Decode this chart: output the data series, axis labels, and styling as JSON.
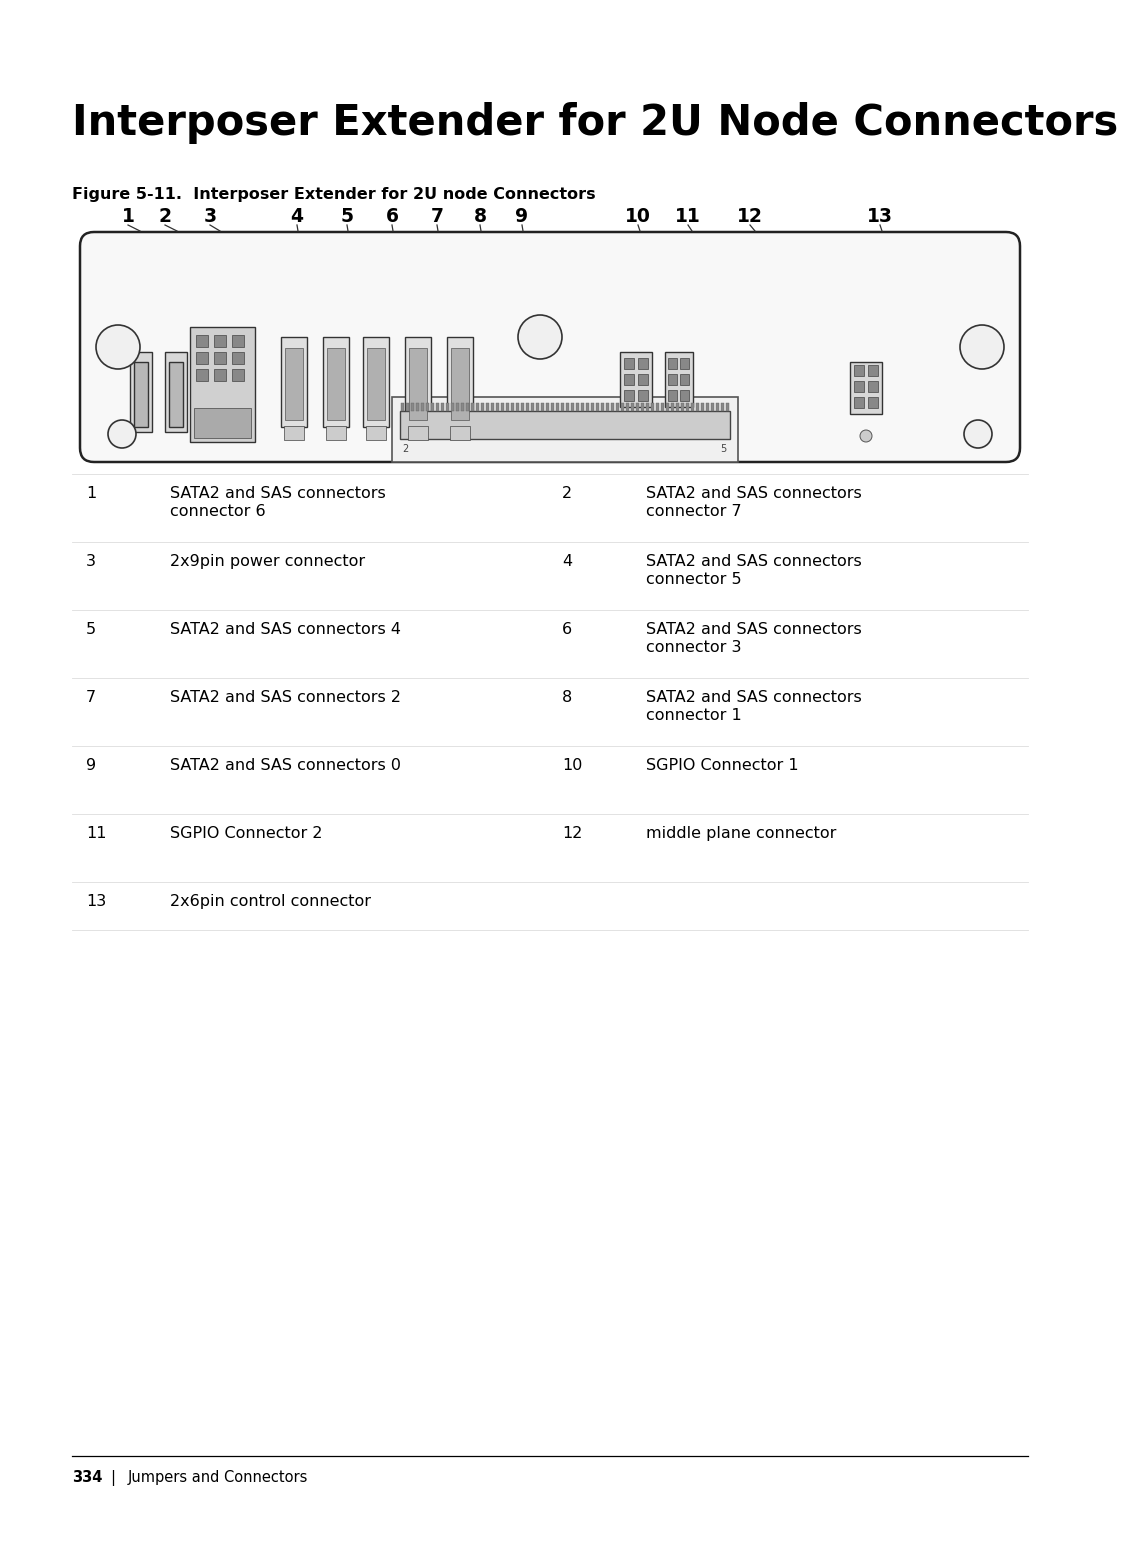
{
  "title": "Interposer Extender for 2U Node Connectors",
  "figure_label": "Figure 5-11.  Interposer Extender for 2U node Connectors",
  "page_footer_num": "334",
  "page_footer_text": "Jumpers and Connectors",
  "table_entries": [
    {
      "num": "1",
      "desc1": "SATA2 and SAS connectors",
      "desc2": "connector 6"
    },
    {
      "num": "2",
      "desc1": "SATA2 and SAS connectors",
      "desc2": "connector 7"
    },
    {
      "num": "3",
      "desc1": "2x9pin power connector",
      "desc2": ""
    },
    {
      "num": "4",
      "desc1": "SATA2 and SAS connectors",
      "desc2": "connector 5"
    },
    {
      "num": "5",
      "desc1": "SATA2 and SAS connectors 4",
      "desc2": ""
    },
    {
      "num": "6",
      "desc1": "SATA2 and SAS connectors",
      "desc2": "connector 3"
    },
    {
      "num": "7",
      "desc1": "SATA2 and SAS connectors 2",
      "desc2": ""
    },
    {
      "num": "8",
      "desc1": "SATA2 and SAS connectors",
      "desc2": "connector 1"
    },
    {
      "num": "9",
      "desc1": "SATA2 and SAS connectors 0",
      "desc2": ""
    },
    {
      "num": "10",
      "desc1": "SGPIO Connector 1",
      "desc2": ""
    },
    {
      "num": "11",
      "desc1": "SGPIO Connector 2",
      "desc2": ""
    },
    {
      "num": "12",
      "desc1": "middle plane connector",
      "desc2": ""
    },
    {
      "num": "13",
      "desc1": "2x6pin control connector",
      "desc2": ""
    }
  ],
  "bg_color": "#ffffff",
  "text_color": "#000000"
}
